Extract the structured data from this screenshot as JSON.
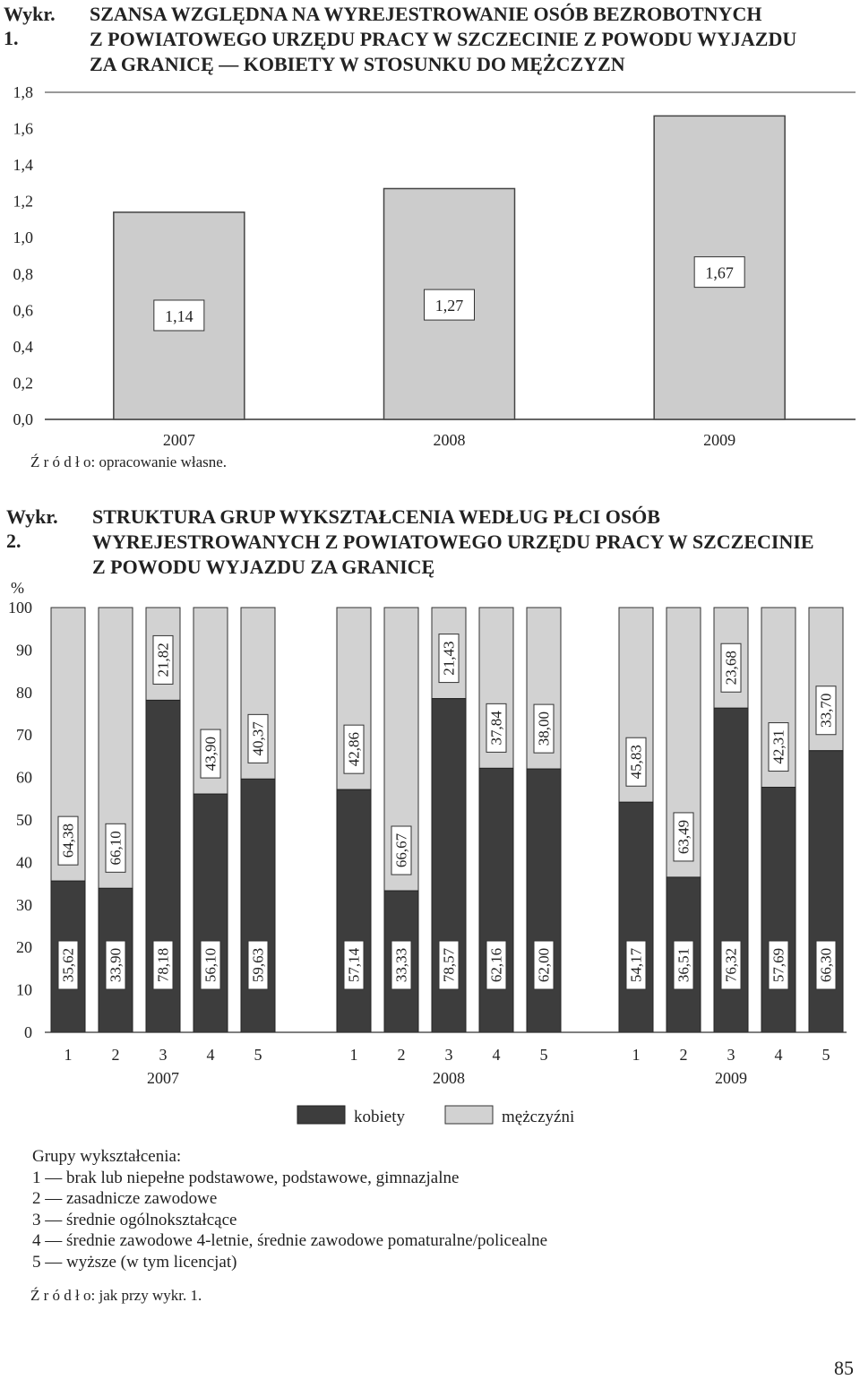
{
  "chart1": {
    "title_label": "Wykr. 1.",
    "title_lines": [
      "SZANSA WZGLĘDNA NA WYREJESTROWANIE OSÓB BEZROBOTNYCH",
      "Z POWIATOWEGO URZĘDU PRACY W SZCZECINIE Z POWODU WYJAZDU",
      "ZA GRANICĘ — KOBIETY W STOSUNKU DO MĘŻCZYZN"
    ],
    "source": "Ź r ó d ł o: opracowanie własne."
  },
  "chart2": {
    "title_label": "Wykr. 2.",
    "title_lines": [
      "STRUKTURA GRUP WYKSZTAŁCENIA WEDŁUG PŁCI OSÓB",
      "WYREJESTROWANYCH Z POWIATOWEGO URZĘDU PRACY W SZCZECINIE",
      "Z POWODU WYJAZDU ZA GRANICĘ"
    ],
    "groups_title": "Grupy wykształcenia:",
    "groups": [
      "1 — brak lub niepełne podstawowe, podstawowe, gimnazjalne",
      "2 — zasadnicze zawodowe",
      "3 — średnie ogólnokształcące",
      "4 — średnie zawodowe 4-letnie, średnie zawodowe pomaturalne/policealne",
      "5 — wyższe (w tym licencjat)"
    ],
    "source": "Ź r ó d ł o: jak przy wykr. 1."
  },
  "page_number": "85",
  "colors": {
    "bar_fill": "#cccccc",
    "kobiety": "#3d3d3d",
    "mezczyzni": "#d2d2d2",
    "axis": "#333333"
  },
  "chart_data": [
    {
      "type": "bar",
      "categories": [
        "2007",
        "2008",
        "2009"
      ],
      "values": [
        1.14,
        1.27,
        1.67
      ],
      "data_labels": [
        "1,14",
        "1,27",
        "1,67"
      ],
      "ylim": [
        0,
        1.8
      ],
      "yticks": [
        0,
        0.2,
        0.4,
        0.6,
        0.8,
        1.0,
        1.2,
        1.4,
        1.6,
        1.8
      ],
      "ytick_labels": [
        "0,0",
        "0,2",
        "0,4",
        "0,6",
        "0,8",
        "1,0",
        "1,2",
        "1,4",
        "1,6",
        "1,8"
      ],
      "grid": false
    },
    {
      "type": "bar",
      "stacked": true,
      "ylabel": "%",
      "ylim": [
        0,
        100
      ],
      "yticks": [
        0,
        10,
        20,
        30,
        40,
        50,
        60,
        70,
        80,
        90,
        100
      ],
      "ytick_labels": [
        "0",
        "10",
        "20",
        "30",
        "40",
        "50",
        "60",
        "70",
        "80",
        "90",
        "100"
      ],
      "groups": [
        "2007",
        "2008",
        "2009"
      ],
      "categories": [
        "1",
        "2",
        "3",
        "4",
        "5"
      ],
      "series": [
        {
          "name": "kobiety",
          "values": [
            [
              35.62,
              33.9,
              78.18,
              56.1,
              59.63
            ],
            [
              57.14,
              33.33,
              78.57,
              62.16,
              62.0
            ],
            [
              54.17,
              36.51,
              76.32,
              57.69,
              66.3
            ]
          ],
          "labels": [
            [
              "35,62",
              "33,90",
              "78,18",
              "56,10",
              "59,63"
            ],
            [
              "57,14",
              "33,33",
              "78,57",
              "62,16",
              "62,00"
            ],
            [
              "54,17",
              "36,51",
              "76,32",
              "57,69",
              "66,30"
            ]
          ]
        },
        {
          "name": "mężczyźni",
          "values": [
            [
              64.38,
              66.1,
              21.82,
              43.9,
              40.37
            ],
            [
              42.86,
              66.67,
              21.43,
              37.84,
              38.0
            ],
            [
              45.83,
              63.49,
              23.68,
              42.31,
              33.7
            ]
          ],
          "labels": [
            [
              "64,38",
              "66,10",
              "21,82",
              "43,90",
              "40,37"
            ],
            [
              "42,86",
              "66,67",
              "21,43",
              "37,84",
              "38,00"
            ],
            [
              "45,83",
              "63,49",
              "23,68",
              "42,31",
              "33,70"
            ]
          ]
        }
      ],
      "legend_position": "bottom",
      "grid": false
    }
  ]
}
